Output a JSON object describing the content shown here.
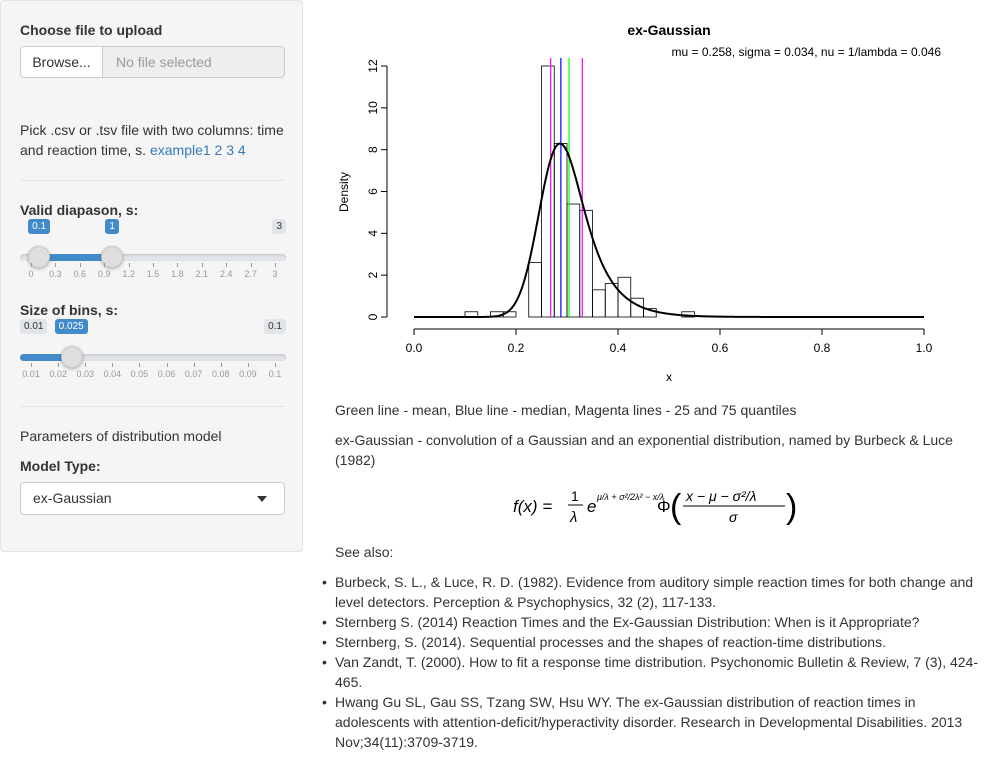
{
  "sidebar": {
    "upload_label": "Choose file to upload",
    "browse_label": "Browse...",
    "file_placeholder": "No file selected",
    "help_text": "Pick .csv or .tsv file with two columns: time and reaction time, s. ",
    "example_links": [
      "example1",
      "2",
      "3",
      "4"
    ],
    "valid_label": "Valid diapason, s:",
    "valid_slider": {
      "min_label": "0.1",
      "max_label": "1",
      "edge_max": "3",
      "min": 0,
      "max": 3,
      "from": 0.1,
      "to": 1,
      "ticks": [
        "0",
        "0.3",
        "0.6",
        "0.9",
        "1.2",
        "1.5",
        "1.8",
        "2.1",
        "2.4",
        "2.7",
        "3"
      ]
    },
    "bins_label": "Size of bins, s:",
    "bins_slider": {
      "edge_min": "0.01",
      "value_label": "0.025",
      "edge_max": "0.1",
      "min": 0.01,
      "max": 0.1,
      "value": 0.025,
      "ticks": [
        "0.01",
        "0.02",
        "0.03",
        "0.04",
        "0.05",
        "0.06",
        "0.07",
        "0.08",
        "0.09",
        "0.1"
      ]
    },
    "params_text": "Parameters of distribution model",
    "model_label": "Model Type:",
    "model_selected": "ex-Gaussian"
  },
  "chart_data": {
    "type": "bar",
    "title": "ex-Gaussian",
    "subtitle": "mu = 0.258, sigma = 0.034, nu = 1/lambda = 0.046",
    "xlabel": "x",
    "ylabel": "Density",
    "xlim": [
      0,
      1
    ],
    "ylim": [
      0,
      12
    ],
    "x_ticks": [
      "0.0",
      "0.2",
      "0.4",
      "0.6",
      "0.8",
      "1.0"
    ],
    "y_ticks": [
      "0",
      "2",
      "4",
      "6",
      "8",
      "10",
      "12"
    ],
    "bin_width": 0.025,
    "bins": [
      {
        "x0": 0.1,
        "density": 0.25
      },
      {
        "x0": 0.15,
        "density": 0.25
      },
      {
        "x0": 0.175,
        "density": 0.25
      },
      {
        "x0": 0.225,
        "density": 2.6
      },
      {
        "x0": 0.25,
        "density": 12.0
      },
      {
        "x0": 0.275,
        "density": 8.3
      },
      {
        "x0": 0.3,
        "density": 5.4
      },
      {
        "x0": 0.325,
        "density": 5.1
      },
      {
        "x0": 0.35,
        "density": 1.3
      },
      {
        "x0": 0.375,
        "density": 1.6
      },
      {
        "x0": 0.4,
        "density": 1.9
      },
      {
        "x0": 0.425,
        "density": 0.9
      },
      {
        "x0": 0.45,
        "density": 0.4
      },
      {
        "x0": 0.525,
        "density": 0.25
      }
    ],
    "density_curve": {
      "mu": 0.258,
      "sigma": 0.034,
      "nu": 0.046
    },
    "vlines": [
      {
        "name": "25 quantile",
        "x": 0.268,
        "color": "#ff00ff"
      },
      {
        "name": "median",
        "x": 0.288,
        "color": "#0000ff"
      },
      {
        "name": "mean",
        "x": 0.304,
        "color": "#00ff00"
      },
      {
        "name": "75 quantile",
        "x": 0.33,
        "color": "#ff00ff"
      }
    ],
    "grid": false
  },
  "main": {
    "legend_text": "Green line - mean, Blue line - median, Magenta lines - 25 and 75 quantiles",
    "description": "ex-Gaussian - convolution of a Gaussian and an exponential distribution, named by Burbeck & Luce (1982)",
    "formula": "f(x) = (1/λ) e^(μ/λ + σ²/(2λ²) − x/λ) Φ((x − μ − σ²/λ)/σ)",
    "see_also": "See also:",
    "references": [
      "Burbeck, S. L., & Luce, R. D. (1982). Evidence from auditory simple reaction times for both change and level detectors. Perception & Psychophysics, 32 (2), 117-133.",
      "Sternberg S. (2014) Reaction Times and the Ex-Gaussian Distribution: When is it Appropriate?",
      "Sternberg, S. (2014). Sequential processes and the shapes of reaction-time distributions.",
      "Van Zandt, T. (2000). How to fit a response time distribution. Psychonomic Bulletin & Review, 7 (3), 424-465.",
      "Hwang Gu SL, Gau SS, Tzang SW, Hsu WY. The ex-Gaussian distribution of reaction times in adolescents with attention-deficit/hyperactivity disorder. Research in Developmental Disabilities. 2013 Nov;34(11):3709-3719."
    ]
  }
}
